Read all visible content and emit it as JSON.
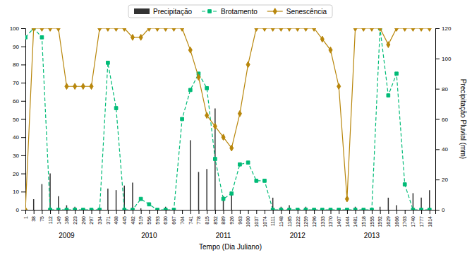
{
  "chart_data": {
    "type": "line",
    "xlabel": "Tempo (Dia Juliano)",
    "y2label": "Precipitação Pluvial (mm)",
    "x": [
      1,
      38,
      75,
      112,
      149,
      186,
      223,
      260,
      297,
      334,
      371,
      408,
      445,
      482,
      519,
      556,
      593,
      630,
      667,
      704,
      741,
      778,
      815,
      852,
      889,
      926,
      963,
      1000,
      1037,
      1074,
      1111,
      1148,
      1185,
      1222,
      1259,
      1296,
      1333,
      1370,
      1407,
      1444,
      1481,
      1518,
      1555,
      1592,
      1629,
      1666,
      1703,
      1740,
      1777,
      1814
    ],
    "series": [
      {
        "name": "Precipitação",
        "type": "bar",
        "axis": "y2",
        "color": "#333333",
        "values": [
          6,
          7,
          17,
          24,
          9,
          3,
          2,
          1,
          1,
          1,
          14,
          13,
          16,
          18,
          1,
          0,
          0,
          2,
          0,
          0,
          46,
          25,
          27,
          67,
          9,
          10,
          0,
          0,
          0,
          0,
          8,
          2,
          3,
          0,
          2,
          0,
          0,
          0,
          0,
          0,
          2,
          0,
          0,
          2,
          8,
          3,
          0,
          11,
          8,
          13
        ]
      },
      {
        "name": "Brotamento",
        "type": "line",
        "color": "#00bb77",
        "marker": "square",
        "line_style": "dashed",
        "values": [
          95,
          100,
          95,
          0,
          0,
          0,
          0,
          0,
          0,
          0,
          81,
          56,
          0,
          0,
          6,
          3,
          0,
          0,
          0,
          50,
          66,
          75,
          67,
          28,
          6,
          9,
          25,
          26,
          16,
          16,
          0,
          0,
          0,
          0,
          0,
          0,
          0,
          0,
          0,
          0,
          0,
          0,
          0,
          100,
          63,
          75,
          14,
          0,
          0,
          0
        ]
      },
      {
        "name": "Senescência",
        "type": "line",
        "color": "#b8860b",
        "marker": "diamond",
        "line_style": "solid",
        "values": [
          0,
          100,
          100,
          100,
          100,
          68,
          68,
          68,
          68,
          100,
          100,
          100,
          100,
          95,
          95,
          100,
          100,
          100,
          100,
          100,
          88,
          73,
          52,
          46,
          40,
          34,
          53,
          80,
          100,
          100,
          100,
          100,
          100,
          100,
          100,
          100,
          94,
          88,
          68,
          6,
          100,
          100,
          100,
          100,
          91,
          100,
          100,
          100,
          100,
          100
        ]
      }
    ],
    "xlim": [
      1,
      1840
    ],
    "xticks": [
      1,
      38,
      75,
      112,
      149,
      186,
      223,
      260,
      297,
      334,
      371,
      408,
      445,
      482,
      519,
      556,
      593,
      630,
      667,
      704,
      741,
      778,
      815,
      852,
      889,
      926,
      963,
      1000,
      1037,
      1074,
      1111,
      1148,
      1185,
      1222,
      1259,
      1296,
      1333,
      1370,
      1407,
      1444,
      1481,
      1518,
      1555,
      1592,
      1629,
      1666,
      1703,
      1740,
      1777,
      1814
    ],
    "ylim": [
      0,
      100
    ],
    "yticks": [
      0,
      10,
      20,
      30,
      40,
      50,
      60,
      70,
      80,
      90,
      100
    ],
    "y2lim": [
      0,
      120
    ],
    "y2ticks": [
      0,
      20,
      40,
      60,
      80,
      100,
      120
    ],
    "annotations": [
      {
        "text": "2009",
        "x": 186
      },
      {
        "text": "2010",
        "x": 556
      },
      {
        "text": "2011",
        "x": 889
      },
      {
        "text": "2012",
        "x": 1222
      },
      {
        "text": "2013",
        "x": 1555
      }
    ],
    "legend": "top",
    "grid": false
  }
}
